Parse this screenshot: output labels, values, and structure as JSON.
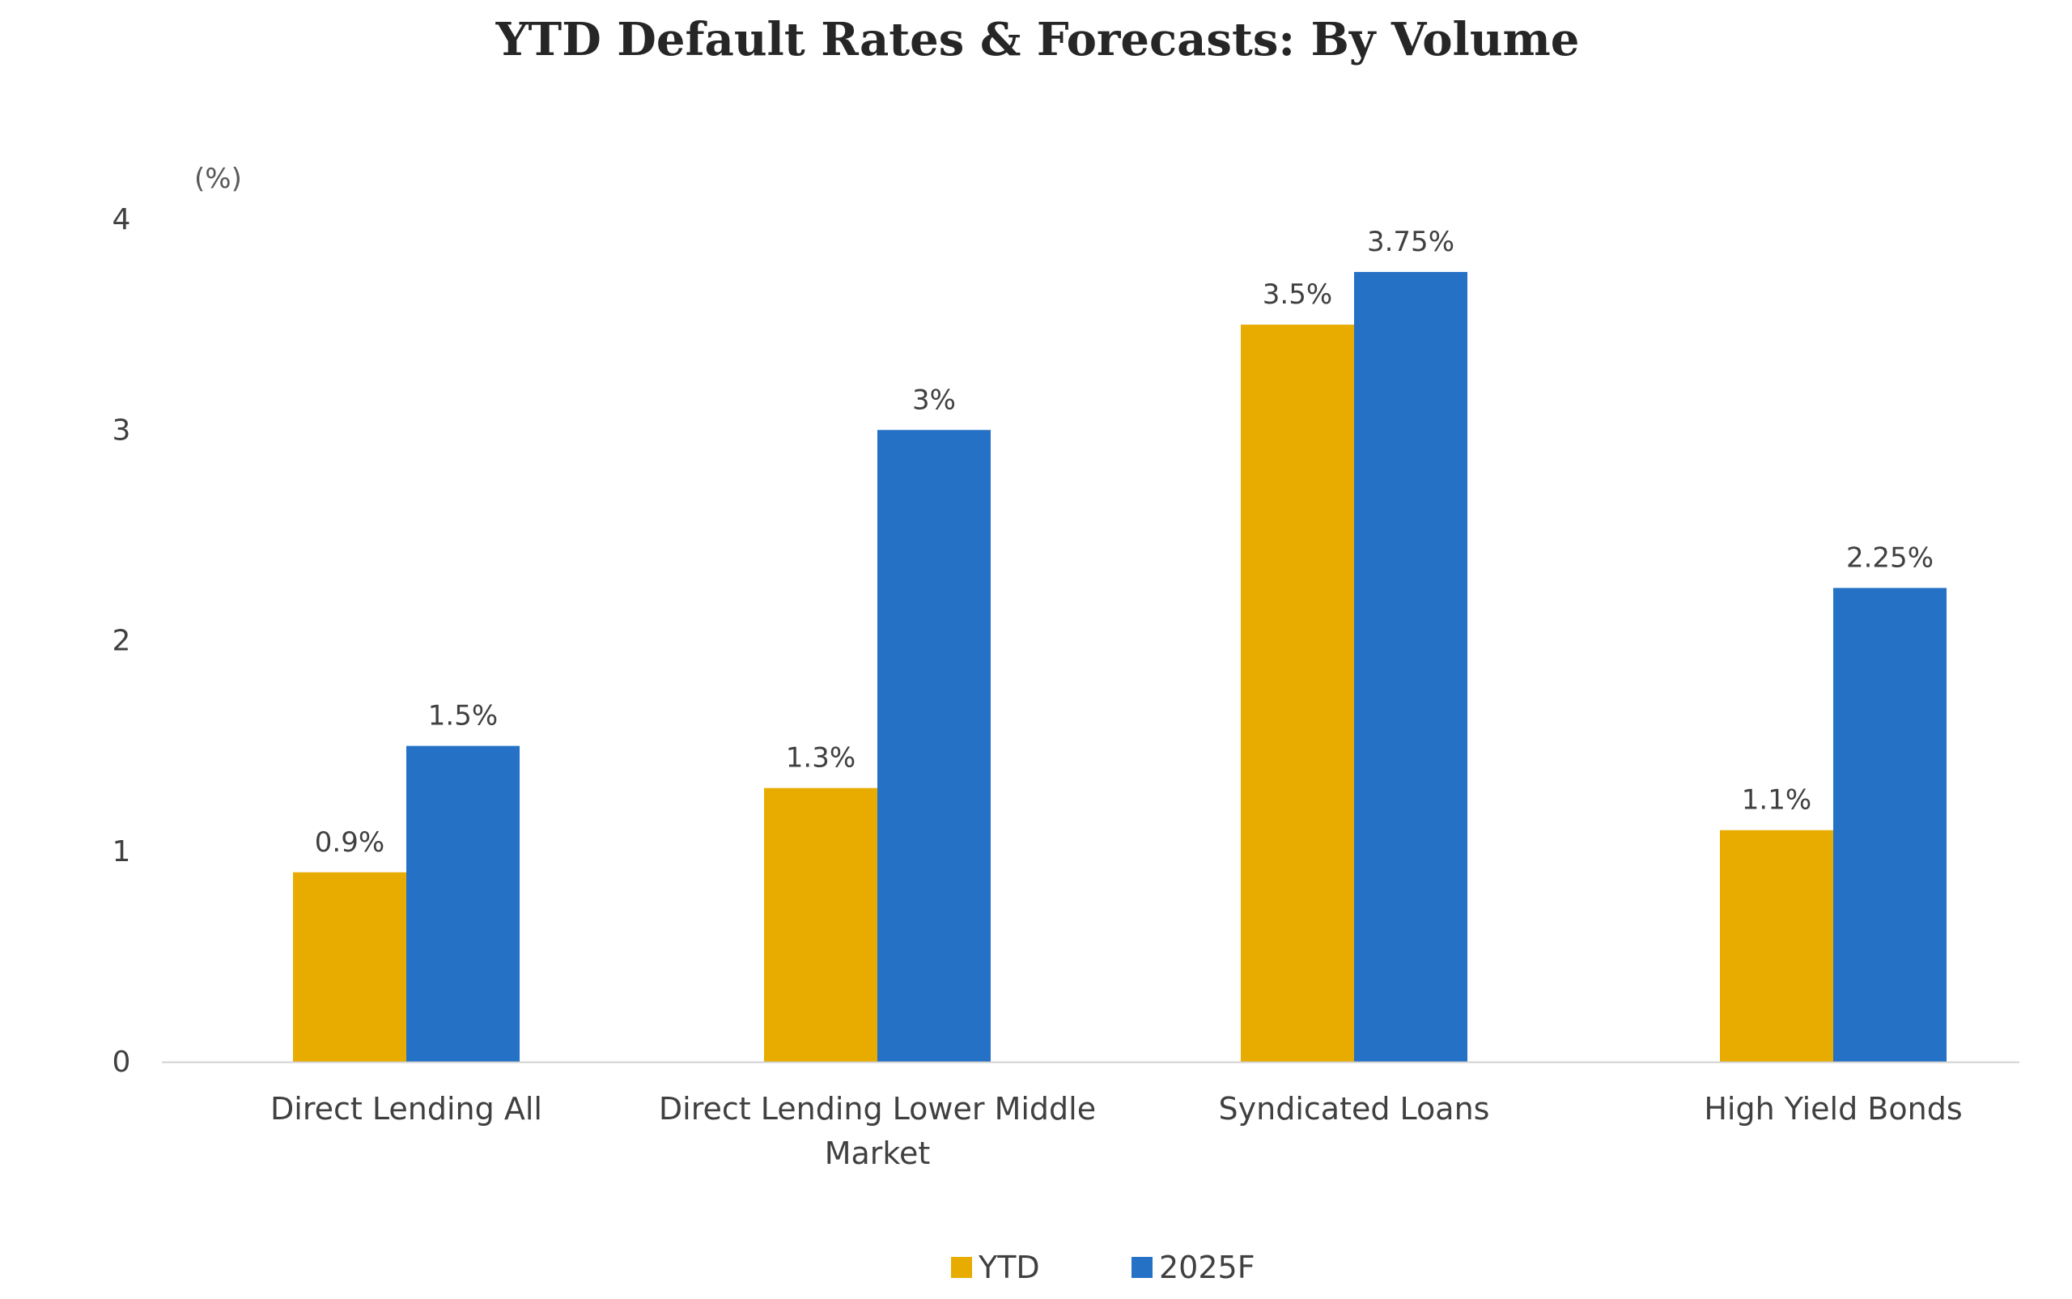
{
  "chart_data": {
    "type": "bar",
    "title": "YTD Default Rates & Forecasts: By Volume",
    "y_unit_label": "(%)",
    "xlabel": "",
    "ylabel": "",
    "ylim": [
      0,
      4
    ],
    "y_ticks": [
      0,
      1,
      2,
      3,
      4
    ],
    "categories": [
      [
        "Direct Lending All"
      ],
      [
        "Direct Lending Lower Middle",
        "Market"
      ],
      [
        "Syndicated Loans"
      ],
      [
        "High Yield Bonds"
      ]
    ],
    "series": [
      {
        "name": "YTD",
        "color": "#E8AB00",
        "values": [
          0.9,
          1.3,
          3.5,
          1.1
        ],
        "labels": [
          "0.9%",
          "1.3%",
          "3.5%",
          "1.1%"
        ]
      },
      {
        "name": "2025F",
        "color": "#2471C6",
        "values": [
          1.5,
          3.0,
          3.75,
          2.25
        ],
        "labels": [
          "1.5%",
          "3%",
          "3.75%",
          "2.25%"
        ]
      }
    ],
    "legend_position": "bottom-center",
    "grid": false,
    "colors": {
      "axis_line": "#d0d0d0",
      "tick_text": "#404040",
      "title_text": "#262626",
      "label_text": "#404040"
    }
  }
}
